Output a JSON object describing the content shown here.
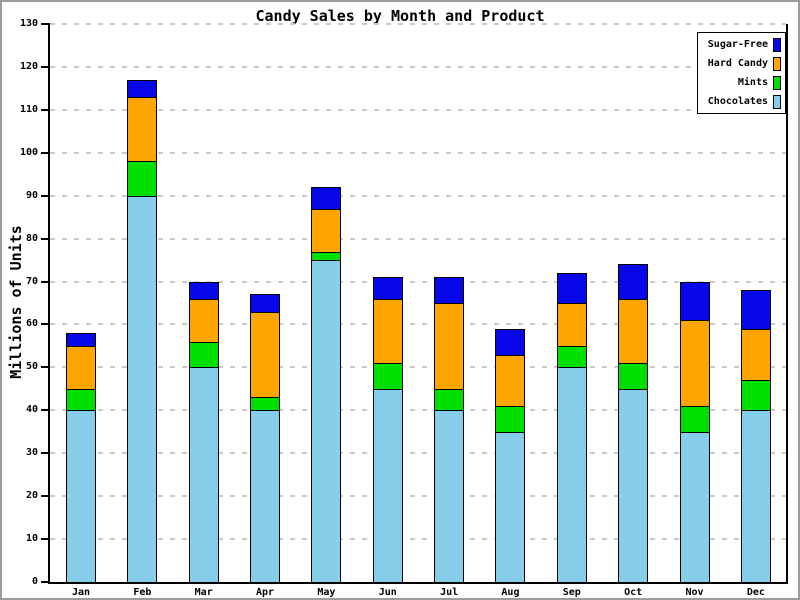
{
  "window": {
    "background": "#ffffff",
    "border_color": "#9c9c9c"
  },
  "chart_data": {
    "type": "bar",
    "stacked": true,
    "title": "Candy Sales by Month and Product",
    "xlabel": "",
    "ylabel": "Millions of Units",
    "categories": [
      "Jan",
      "Feb",
      "Mar",
      "Apr",
      "May",
      "Jun",
      "Jul",
      "Aug",
      "Sep",
      "Oct",
      "Nov",
      "Dec"
    ],
    "series": [
      {
        "name": "Chocolates",
        "color": "#87CEEB",
        "values": [
          40,
          90,
          50,
          40,
          75,
          45,
          40,
          35,
          50,
          45,
          35,
          40
        ]
      },
      {
        "name": "Mints",
        "color": "#00E000",
        "values": [
          5,
          8,
          6,
          3,
          2,
          6,
          5,
          6,
          5,
          6,
          6,
          7
        ]
      },
      {
        "name": "Hard Candy",
        "color": "#FFA500",
        "values": [
          10,
          15,
          10,
          20,
          10,
          15,
          20,
          12,
          10,
          15,
          20,
          12
        ]
      },
      {
        "name": "Sugar-Free",
        "color": "#0707E8",
        "values": [
          3,
          4,
          4,
          4,
          5,
          5,
          6,
          6,
          7,
          8,
          9,
          9
        ]
      }
    ],
    "totals": [
      58,
      117,
      70,
      67,
      92,
      71,
      71,
      59,
      72,
      74,
      70,
      68
    ],
    "ylim": [
      0,
      130
    ],
    "ytick_step": 10,
    "grid": "dashed-horizontal",
    "grid_color": "#c9c9c9",
    "legend": {
      "position": "top-right",
      "items": [
        {
          "label": "Sugar-Free",
          "color": "#0707E8"
        },
        {
          "label": "Hard Candy",
          "color": "#FFA500"
        },
        {
          "label": "Mints",
          "color": "#00E000"
        },
        {
          "label": "Chocolates",
          "color": "#87CEEB"
        }
      ]
    }
  }
}
